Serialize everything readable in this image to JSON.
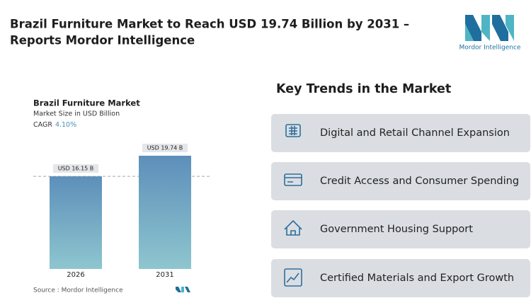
{
  "header": {
    "title_line_1": "Brazil Furniture Market to Reach USD 19.74 Billion by 2031 –",
    "title_line_2": "Reports Mordor Intelligence",
    "logo_text": "Mordor Intelligence"
  },
  "chart_data": {
    "type": "bar",
    "title": "Brazil Furniture Market",
    "subtitle": "Market Size in USD Billion",
    "cagr_label": "CAGR",
    "cagr_value": "4.10%",
    "categories": [
      "2026",
      "2031"
    ],
    "values": [
      16.15,
      19.74
    ],
    "value_labels": [
      "USD 16.15 B",
      "USD 19.74 B"
    ],
    "source": "Source : Mordor Intelligence"
  },
  "trends": {
    "title": "Key Trends in the Market",
    "items": [
      "Digital and Retail Channel Expansion",
      "Credit Access and Consumer Spending",
      "Government Housing Support",
      "Certified Materials and Export Growth"
    ]
  }
}
